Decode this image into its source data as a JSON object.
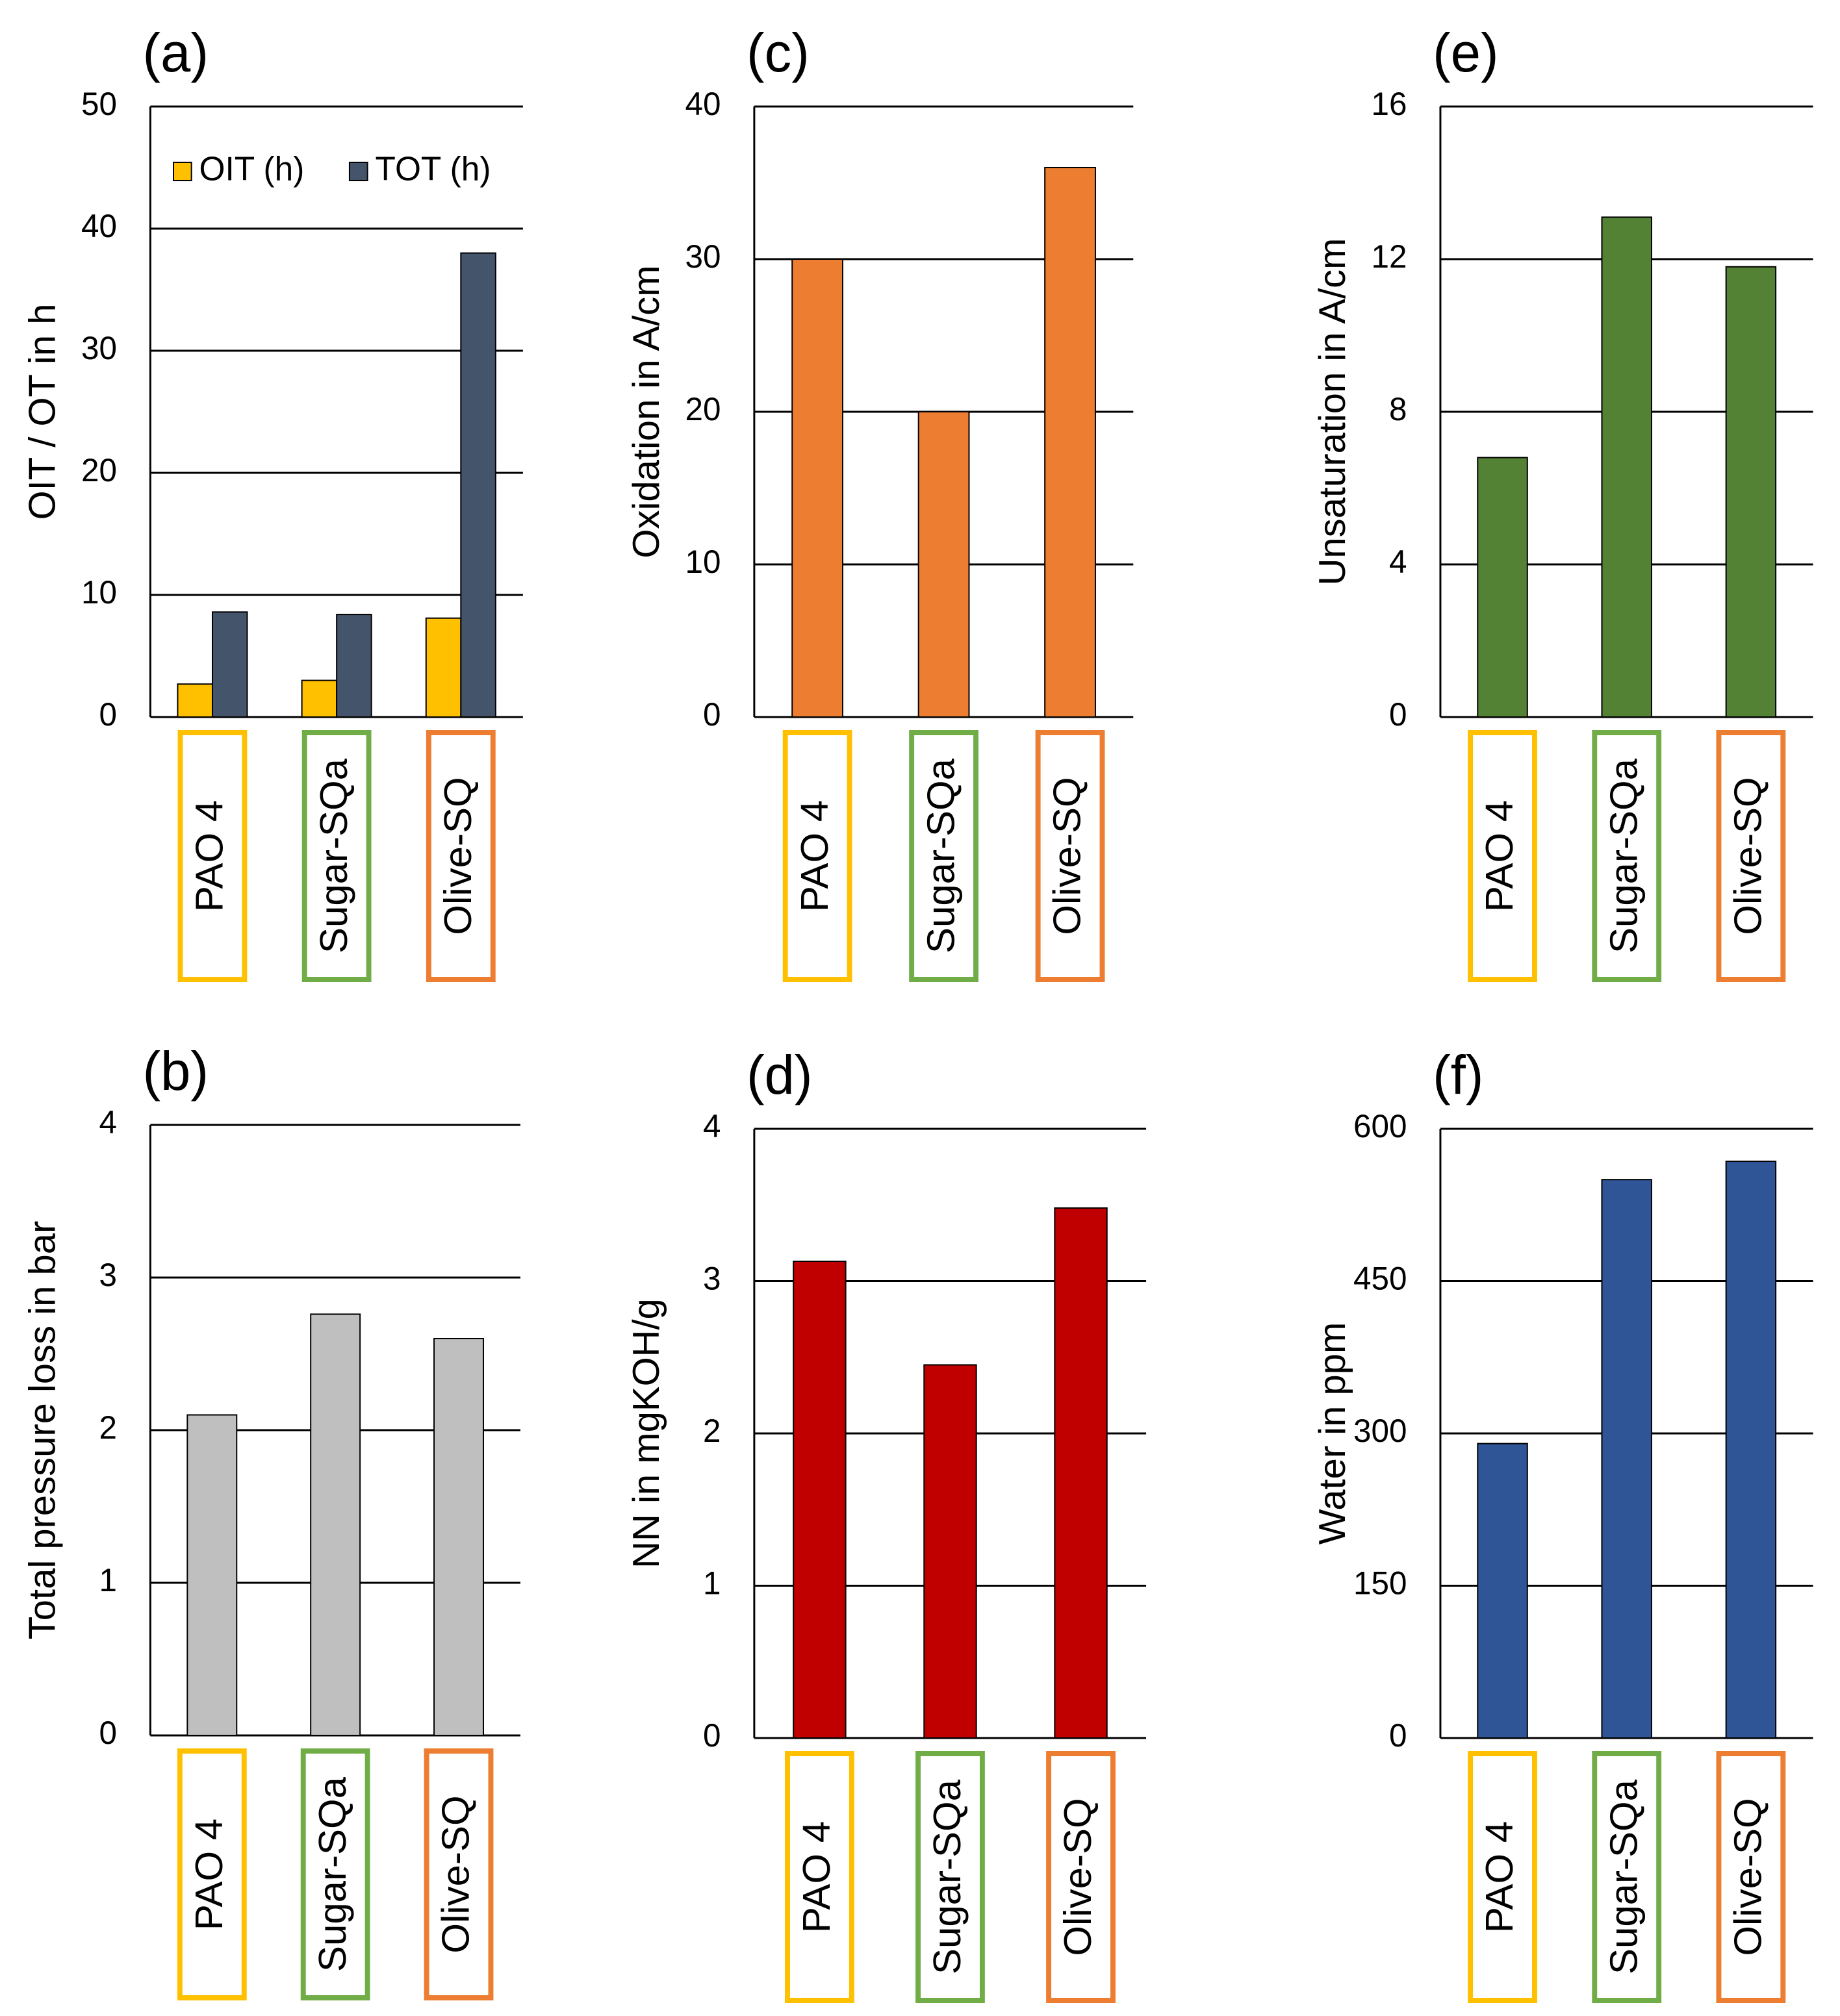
{
  "chart_data": [
    {
      "type": "bar",
      "panel_label": "(a)",
      "ylabel": "OIT / OT in h",
      "categories": [
        "PAO 4",
        "Sugar-SQa",
        "Olive-SQ"
      ],
      "category_colors": [
        "#ffc000",
        "#70ad47",
        "#ed7d31"
      ],
      "series": [
        {
          "name": "OIT (h)",
          "color": "#ffc000",
          "values": [
            2.7,
            3.0,
            8.1
          ]
        },
        {
          "name": "TOT (h)",
          "color": "#44546a",
          "values": [
            8.6,
            8.4,
            38
          ]
        }
      ],
      "ylim": [
        0,
        50
      ],
      "yticks": [
        0,
        10,
        20,
        30,
        40,
        50
      ],
      "grid": true,
      "legend": "upper left"
    },
    {
      "type": "bar",
      "panel_label": "(b)",
      "ylabel": "Total pressure loss in bar",
      "categories": [
        "PAO 4",
        "Sugar-SQa",
        "Olive-SQ"
      ],
      "category_colors": [
        "#ffc000",
        "#70ad47",
        "#ed7d31"
      ],
      "series": [
        {
          "color": "#bfbfbf",
          "values": [
            2.1,
            2.76,
            2.6
          ]
        }
      ],
      "ylim": [
        0,
        4
      ],
      "yticks": [
        0,
        1,
        2,
        3,
        4
      ],
      "grid": true
    },
    {
      "type": "bar",
      "panel_label": "(c)",
      "ylabel": "Oxidation  in A/cm",
      "categories": [
        "PAO 4",
        "Sugar-SQa",
        "Olive-SQ"
      ],
      "category_colors": [
        "#ffc000",
        "#70ad47",
        "#ed7d31"
      ],
      "series": [
        {
          "color": "#ed7d31",
          "values": [
            30,
            20,
            36
          ]
        }
      ],
      "ylim": [
        0,
        40
      ],
      "yticks": [
        0,
        10,
        20,
        30,
        40
      ],
      "grid": true
    },
    {
      "type": "bar",
      "panel_label": "(d)",
      "ylabel": "NN in mgKOH/g",
      "categories": [
        "PAO 4",
        "Sugar-SQa",
        "Olive-SQ"
      ],
      "category_colors": [
        "#ffc000",
        "#70ad47",
        "#ed7d31"
      ],
      "series": [
        {
          "color": "#c00000",
          "values": [
            3.13,
            2.45,
            3.48
          ]
        }
      ],
      "ylim": [
        0,
        4
      ],
      "yticks": [
        0,
        1,
        2,
        3,
        4
      ],
      "grid": true
    },
    {
      "type": "bar",
      "panel_label": "(e)",
      "ylabel": "Unsaturation in A/cm",
      "categories": [
        "PAO 4",
        "Sugar-SQa",
        "Olive-SQ"
      ],
      "category_colors": [
        "#ffc000",
        "#70ad47",
        "#ed7d31"
      ],
      "series": [
        {
          "color": "#548235",
          "values": [
            6.8,
            13.1,
            11.8
          ]
        }
      ],
      "ylim": [
        0,
        16
      ],
      "yticks": [
        0,
        4,
        8,
        12,
        16
      ],
      "grid": true
    },
    {
      "type": "bar",
      "panel_label": "(f)",
      "ylabel": "Water in ppm",
      "categories": [
        "PAO 4",
        "Sugar-SQa",
        "Olive-SQ"
      ],
      "category_colors": [
        "#ffc000",
        "#70ad47",
        "#ed7d31"
      ],
      "series": [
        {
          "color": "#2f5597",
          "values": [
            290,
            550,
            568
          ]
        }
      ],
      "ylim": [
        0,
        600
      ],
      "yticks": [
        0,
        150,
        300,
        450,
        600
      ],
      "grid": true
    }
  ]
}
